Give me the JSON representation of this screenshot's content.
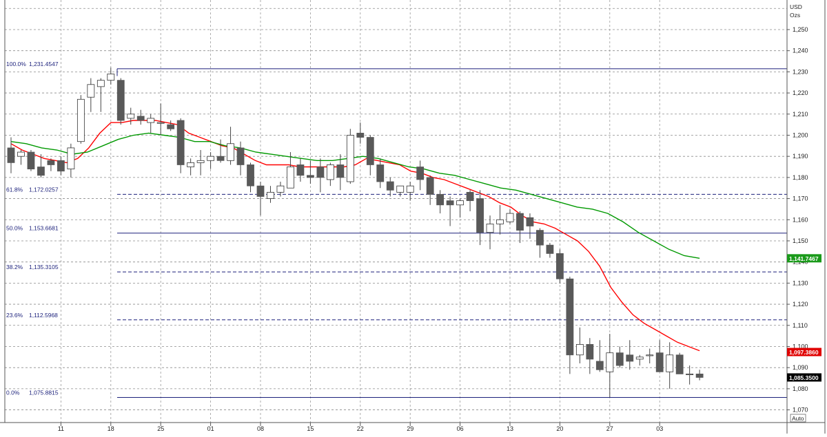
{
  "chart_data": {
    "type": "candlestick",
    "units": [
      "USD",
      "Ozs"
    ],
    "ylim": [
      1064,
      1264
    ],
    "y_ticks": [
      1070,
      1080,
      1090,
      1100,
      1110,
      1120,
      1130,
      1140,
      1150,
      1160,
      1170,
      1180,
      1190,
      1200,
      1210,
      1220,
      1230,
      1240,
      1250
    ],
    "y_tick_labels": [
      "1,070",
      "1,080",
      "1,090",
      "1,100",
      "1,110",
      "1,120",
      "1,130",
      "1,140",
      "1,150",
      "1,160",
      "1,170",
      "1,180",
      "1,190",
      "1,200",
      "1,210",
      "1,220",
      "1,230",
      "1,240",
      "1,250"
    ],
    "x_tick_labels": [
      "11",
      "18",
      "25",
      "01",
      "08",
      "15",
      "22",
      "29",
      "06",
      "13",
      "20",
      "27",
      "03"
    ],
    "x_tick_index": [
      5,
      10,
      15,
      20,
      25,
      30,
      35,
      40,
      45,
      50,
      55,
      60,
      65
    ],
    "grid": true,
    "ohlc": [
      [
        1194,
        1199,
        1182,
        1187
      ],
      [
        1190,
        1193,
        1186,
        1192
      ],
      [
        1192,
        1193,
        1183,
        1184
      ],
      [
        1185,
        1191,
        1180,
        1181
      ],
      [
        1188,
        1189,
        1183,
        1186
      ],
      [
        1188,
        1190,
        1181,
        1183
      ],
      [
        1184,
        1196,
        1180,
        1194
      ],
      [
        1197,
        1219,
        1196,
        1217
      ],
      [
        1218,
        1227,
        1211,
        1224
      ],
      [
        1223,
        1227,
        1211,
        1226
      ],
      [
        1226,
        1232,
        1224,
        1229
      ],
      [
        1226,
        1227,
        1205,
        1207
      ],
      [
        1208,
        1213,
        1205,
        1210
      ],
      [
        1209,
        1212,
        1205,
        1207
      ],
      [
        1206,
        1210,
        1201,
        1208
      ],
      [
        1206,
        1215,
        1200,
        1206
      ],
      [
        1205,
        1207,
        1202,
        1203
      ],
      [
        1207,
        1208,
        1182,
        1186
      ],
      [
        1185,
        1189,
        1181,
        1187
      ],
      [
        1187,
        1193,
        1181,
        1188
      ],
      [
        1188,
        1192,
        1184,
        1190
      ],
      [
        1190,
        1198,
        1187,
        1188
      ],
      [
        1188,
        1204,
        1186,
        1196
      ],
      [
        1194,
        1197,
        1181,
        1186
      ],
      [
        1186,
        1187,
        1173,
        1176
      ],
      [
        1176,
        1178,
        1162,
        1171
      ],
      [
        1170,
        1176,
        1168,
        1173
      ],
      [
        1173,
        1178,
        1171,
        1176
      ],
      [
        1175,
        1192,
        1175,
        1185
      ],
      [
        1186,
        1189,
        1178,
        1181
      ],
      [
        1181,
        1188,
        1177,
        1180
      ],
      [
        1185,
        1189,
        1173,
        1180
      ],
      [
        1179,
        1187,
        1176,
        1186
      ],
      [
        1186,
        1191,
        1174,
        1180
      ],
      [
        1178,
        1203,
        1177,
        1200
      ],
      [
        1201,
        1206,
        1196,
        1199
      ],
      [
        1199,
        1200,
        1181,
        1186
      ],
      [
        1186,
        1189,
        1175,
        1178
      ],
      [
        1178,
        1180,
        1171,
        1174
      ],
      [
        1173,
        1175,
        1171,
        1176
      ],
      [
        1173,
        1178,
        1169,
        1176
      ],
      [
        1185,
        1188,
        1174,
        1179
      ],
      [
        1180,
        1181,
        1167,
        1172
      ],
      [
        1172,
        1174,
        1163,
        1167
      ],
      [
        1169,
        1171,
        1157,
        1167
      ],
      [
        1167,
        1170,
        1161,
        1169
      ],
      [
        1173,
        1174,
        1164,
        1169
      ],
      [
        1170,
        1174,
        1148,
        1154
      ],
      [
        1154,
        1162,
        1146,
        1158
      ],
      [
        1158,
        1167,
        1153,
        1160
      ],
      [
        1159,
        1165,
        1158,
        1163
      ],
      [
        1163,
        1164,
        1149,
        1155
      ],
      [
        1161,
        1163,
        1151,
        1157
      ],
      [
        1155,
        1156,
        1142,
        1148
      ],
      [
        1148,
        1149,
        1142,
        1144
      ],
      [
        1144,
        1146,
        1130,
        1132
      ],
      [
        1132,
        1133,
        1087,
        1096
      ],
      [
        1096,
        1109,
        1092,
        1101
      ],
      [
        1101,
        1104,
        1087,
        1094
      ],
      [
        1093,
        1103,
        1088,
        1089
      ],
      [
        1088,
        1106,
        1076,
        1097
      ],
      [
        1097,
        1100,
        1090,
        1091
      ],
      [
        1096,
        1103,
        1089,
        1093
      ],
      [
        1094,
        1096,
        1091,
        1095
      ],
      [
        1096,
        1099,
        1092,
        1096
      ],
      [
        1097,
        1103,
        1088,
        1088
      ],
      [
        1088,
        1102,
        1080,
        1096
      ],
      [
        1096,
        1097,
        1087,
        1087
      ],
      [
        1087,
        1091,
        1082,
        1087
      ],
      [
        1087,
        1089,
        1084,
        1085.35
      ]
    ],
    "series": [
      {
        "name": "",
        "color": "#ff0000",
        "values": [
          1196,
          1193,
          1191,
          1189,
          1188,
          1187,
          1189,
          1194,
          1201,
          1206,
          1206,
          1207,
          1207,
          1207,
          1206,
          1205,
          1201,
          1199,
          1197,
          1195,
          1194,
          1191,
          1188,
          1186,
          1186,
          1186,
          1185,
          1185,
          1185,
          1185,
          1185,
          1186,
          1189,
          1188,
          1187,
          1186,
          1183,
          1182,
          1180,
          1179,
          1177,
          1175,
          1173,
          1171,
          1168,
          1166,
          1162,
          1159,
          1158,
          1156,
          1153,
          1150,
          1145,
          1138,
          1128,
          1121,
          1115,
          1111,
          1108,
          1105,
          1102,
          1100,
          1098
        ]
      },
      {
        "name": "",
        "color": "#009900",
        "values": [
          1197,
          1196,
          1194,
          1193,
          1191,
          1192,
          1195,
          1198,
          1200,
          1201,
          1200,
          1199,
          1197,
          1197,
          1195,
          1194,
          1192,
          1191,
          1190,
          1189,
          1188,
          1188,
          1189,
          1190,
          1189,
          1187,
          1185,
          1184,
          1182,
          1181,
          1179,
          1177,
          1175,
          1174,
          1172,
          1170,
          1168,
          1166,
          1165,
          1163,
          1159,
          1154,
          1150,
          1146,
          1143,
          1141.7467
        ]
      }
    ],
    "fib_levels": [
      {
        "label": "100.0%",
        "value": 1231.4547,
        "value_label": "1,231.4547",
        "style": "solid"
      },
      {
        "label": "61.8%",
        "value": 1172.0257,
        "value_label": "1,172.0257",
        "style": "dashed"
      },
      {
        "label": "50.0%",
        "value": 1153.6681,
        "value_label": "1,153.6681",
        "style": "solid"
      },
      {
        "label": "38.2%",
        "value": 1135.3105,
        "value_label": "1,135.3105",
        "style": "dashed"
      },
      {
        "label": "23.6%",
        "value": 1112.5968,
        "value_label": "1,112.5968",
        "style": "dashed"
      },
      {
        "label": "0.0%",
        "value": 1075.8815,
        "value_label": "1,075.8815",
        "style": "solid"
      }
    ],
    "badges": [
      {
        "name": "green-line-badge",
        "text": "1,141.7467",
        "value": 1141.7467,
        "bg": "#1a9a1a",
        "fg": "#ffffff"
      },
      {
        "name": "red-line-badge",
        "text": "1,097.3860",
        "value": 1097.386,
        "bg": "#e00000",
        "fg": "#ffffff"
      },
      {
        "name": "last-price-badge",
        "text": "1,085.3500",
        "value": 1085.35,
        "bg": "#000000",
        "fg": "#ffffff"
      }
    ],
    "colors": {
      "up_body": "#ffffff",
      "down_body": "#595959",
      "wick": "#444444",
      "fib_line": "#1a1f7a",
      "grid": "#8a8a8a"
    }
  },
  "footer": {
    "auto_label": "Auto"
  }
}
